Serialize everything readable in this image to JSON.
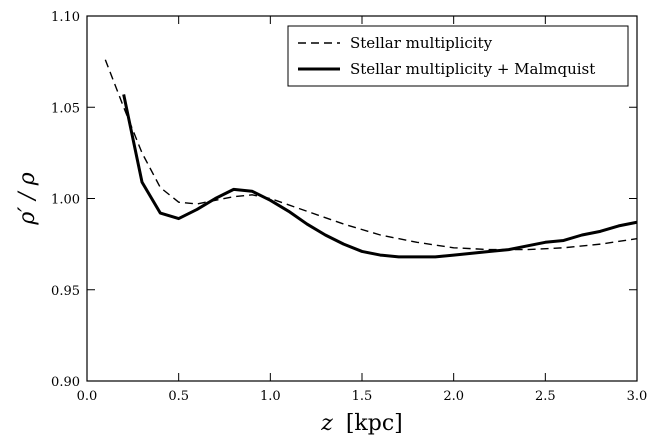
{
  "chart_data": {
    "type": "line",
    "title": "",
    "xlabel_var": "z",
    "xlabel_unit": "[kpc]",
    "ylabel": "ρ′ / ρ",
    "xlim": [
      0.0,
      3.0
    ],
    "ylim": [
      0.9,
      1.1
    ],
    "xticks": [
      "0.0",
      "0.5",
      "1.0",
      "1.5",
      "2.0",
      "2.5",
      "3.0"
    ],
    "yticks": [
      "0.90",
      "0.95",
      "1.00",
      "1.05",
      "1.10"
    ],
    "grid": false,
    "legend_position": "top-right",
    "series": [
      {
        "name": "Stellar multiplicity",
        "style": "dashed",
        "x": [
          0.1,
          0.2,
          0.3,
          0.4,
          0.5,
          0.6,
          0.7,
          0.8,
          0.9,
          1.0,
          1.2,
          1.4,
          1.6,
          1.8,
          2.0,
          2.2,
          2.4,
          2.6,
          2.8,
          3.0
        ],
        "y": [
          1.076,
          1.05,
          1.025,
          1.006,
          0.998,
          0.997,
          0.999,
          1.001,
          1.002,
          1.0,
          0.993,
          0.986,
          0.98,
          0.976,
          0.973,
          0.972,
          0.972,
          0.973,
          0.975,
          0.978
        ]
      },
      {
        "name": "Stellar multiplicity + Malmquist",
        "style": "solid",
        "x": [
          0.2,
          0.3,
          0.4,
          0.5,
          0.6,
          0.7,
          0.8,
          0.9,
          1.0,
          1.1,
          1.2,
          1.3,
          1.4,
          1.5,
          1.6,
          1.7,
          1.8,
          1.9,
          2.0,
          2.1,
          2.2,
          2.3,
          2.4,
          2.5,
          2.6,
          2.7,
          2.8,
          2.9,
          3.0
        ],
        "y": [
          1.057,
          1.009,
          0.992,
          0.989,
          0.994,
          1.0,
          1.005,
          1.004,
          0.999,
          0.993,
          0.986,
          0.98,
          0.975,
          0.971,
          0.969,
          0.968,
          0.968,
          0.968,
          0.969,
          0.97,
          0.971,
          0.972,
          0.974,
          0.976,
          0.977,
          0.98,
          0.982,
          0.985,
          0.987
        ]
      }
    ]
  }
}
